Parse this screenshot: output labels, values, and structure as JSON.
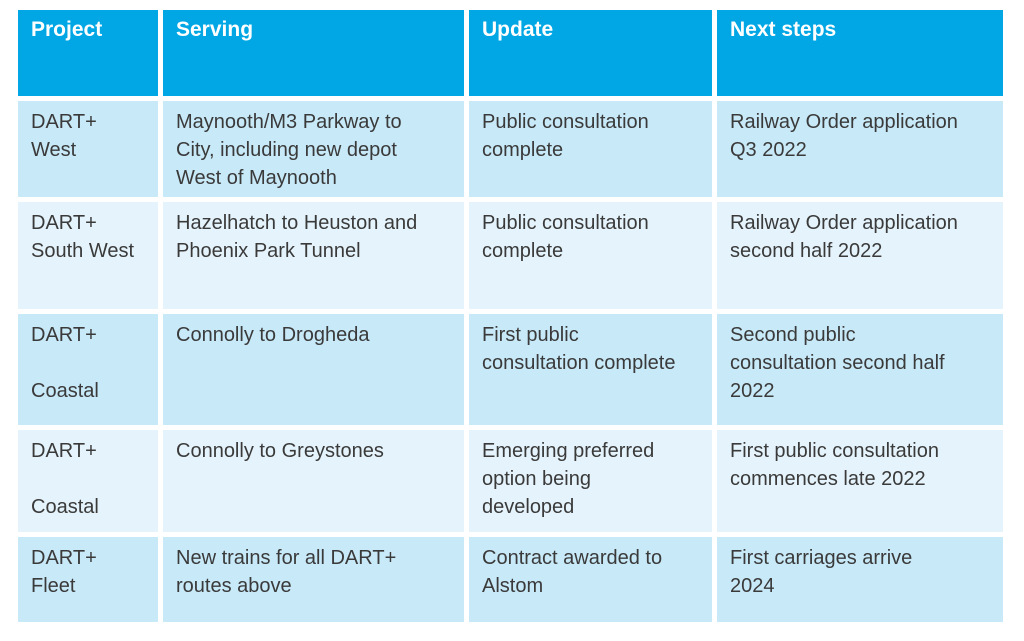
{
  "colors": {
    "page_bg": "#FFFFFF",
    "header_bg": "#00A7E4",
    "header_text": "#FFFFFF",
    "row_shade_a": "#C8E9F8",
    "row_shade_b": "#E5F4FC",
    "body_text": "#3A3A3A"
  },
  "table": {
    "columns": [
      {
        "label": "Project"
      },
      {
        "label": "Serving"
      },
      {
        "label": "Update"
      },
      {
        "label": "Next steps"
      }
    ],
    "rows": [
      {
        "project": "DART+\nWest",
        "serving": "Maynooth/M3 Parkway to\nCity, including new depot\nWest of Maynooth",
        "update": "Public consultation\ncomplete",
        "next_steps": "Railway Order application\nQ3 2022"
      },
      {
        "project": "DART+\nSouth West",
        "serving": "Hazelhatch to Heuston and\nPhoenix Park Tunnel",
        "update": "Public consultation\ncomplete",
        "next_steps": "Railway Order application\nsecond half 2022"
      },
      {
        "project": "DART+\n\nCoastal",
        "serving": "Connolly to Drogheda",
        "update": "First public\nconsultation complete",
        "next_steps": "Second public\nconsultation second half\n2022"
      },
      {
        "project": "DART+\n\nCoastal",
        "serving": "Connolly to Greystones",
        "update": "Emerging preferred\noption being\ndeveloped",
        "next_steps": "First public consultation\ncommences late 2022"
      },
      {
        "project": "DART+\nFleet",
        "serving": "New trains for all DART+\nroutes above",
        "update": "Contract awarded to\nAlstom",
        "next_steps": "First carriages arrive\n2024"
      }
    ]
  }
}
